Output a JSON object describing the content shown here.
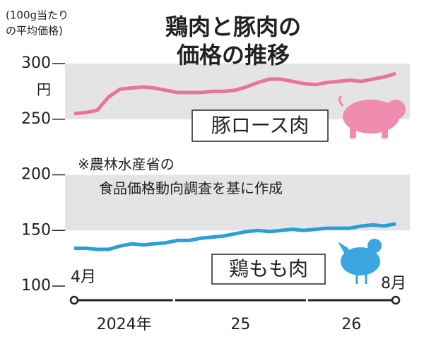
{
  "chart_data": {
    "type": "line",
    "title": [
      "鶏肉と豚肉の",
      "価格の推移"
    ],
    "y_label": [
      "(100g当たり",
      "の平均価格)"
    ],
    "y_unit": "円",
    "note": [
      "※農林水産省の",
      "食品価格動向調査を基に作成"
    ],
    "categories": [
      "4月",
      null,
      null,
      null,
      null,
      null,
      null,
      null,
      null,
      null,
      null,
      null,
      null,
      null,
      null,
      null,
      null,
      null,
      null,
      null,
      null,
      null,
      null,
      null,
      null,
      null,
      null,
      null,
      "8月"
    ],
    "year_labels": [
      "2024年",
      "25",
      "26"
    ],
    "series": [
      {
        "name": "豚ロース肉",
        "color": "#e8749c",
        "values": [
          255,
          256,
          258,
          270,
          277,
          278,
          279,
          278,
          276,
          274,
          274,
          274,
          275,
          275,
          276,
          279,
          283,
          286,
          286,
          284,
          282,
          281,
          283,
          284,
          285,
          284,
          286,
          288,
          291
        ]
      },
      {
        "name": "鶏もも肉",
        "color": "#2a9fd6",
        "values": [
          134,
          134,
          133,
          133,
          136,
          138,
          137,
          138,
          139,
          141,
          141,
          143,
          144,
          145,
          147,
          149,
          150,
          149,
          150,
          151,
          150,
          151,
          152,
          152,
          152,
          154,
          155,
          154,
          156
        ]
      }
    ],
    "ylim": [
      100,
      300
    ],
    "yticks": [
      100,
      150,
      200,
      250,
      300
    ],
    "bands": [
      [
        150,
        200
      ],
      [
        250,
        300
      ]
    ]
  }
}
